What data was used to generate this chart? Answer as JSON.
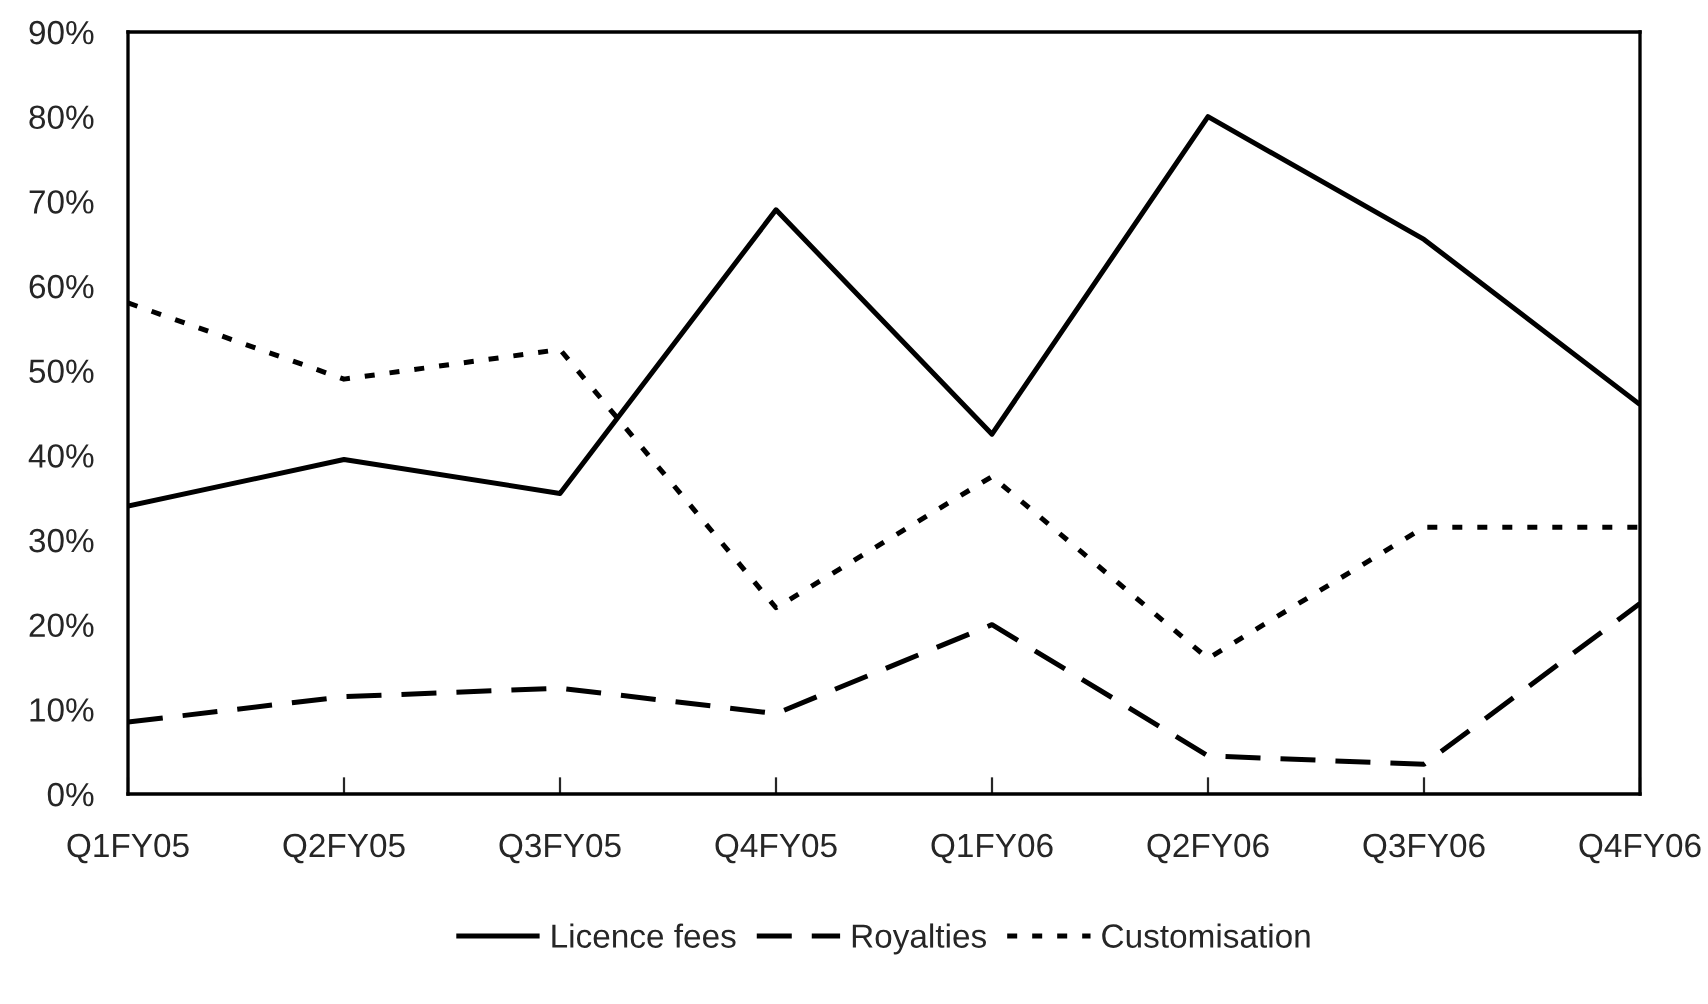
{
  "chart_data": {
    "type": "line",
    "categories": [
      "Q1FY05",
      "Q2FY05",
      "Q3FY05",
      "Q4FY05",
      "Q1FY06",
      "Q2FY06",
      "Q3FY06",
      "Q4FY06"
    ],
    "series": [
      {
        "name": "Licence fees",
        "color": "#000000",
        "line_style": "solid",
        "values": [
          34,
          39.5,
          35.5,
          69,
          42.5,
          80,
          65.5,
          46
        ]
      },
      {
        "name": "Royalties",
        "color": "#000000",
        "line_style": "dashed",
        "values": [
          8.5,
          11.5,
          12.5,
          9.5,
          20,
          4.5,
          3.5,
          22.5
        ]
      },
      {
        "name": "Customisation",
        "color": "#000000",
        "line_style": "dotted",
        "values": [
          58,
          49,
          52.5,
          22,
          37.5,
          16,
          31.5,
          31.5
        ]
      }
    ],
    "ylim": [
      0,
      90
    ],
    "yticks": [
      {
        "value": 0,
        "label": "0%"
      },
      {
        "value": 10,
        "label": "10%"
      },
      {
        "value": 20,
        "label": "20%"
      },
      {
        "value": 30,
        "label": "30%"
      },
      {
        "value": 40,
        "label": "40%"
      },
      {
        "value": 50,
        "label": "50%"
      },
      {
        "value": 60,
        "label": "60%"
      },
      {
        "value": 70,
        "label": "70%"
      },
      {
        "value": 80,
        "label": "80%"
      },
      {
        "value": 90,
        "label": "90%"
      }
    ],
    "grid": false,
    "legend": "bottom"
  }
}
